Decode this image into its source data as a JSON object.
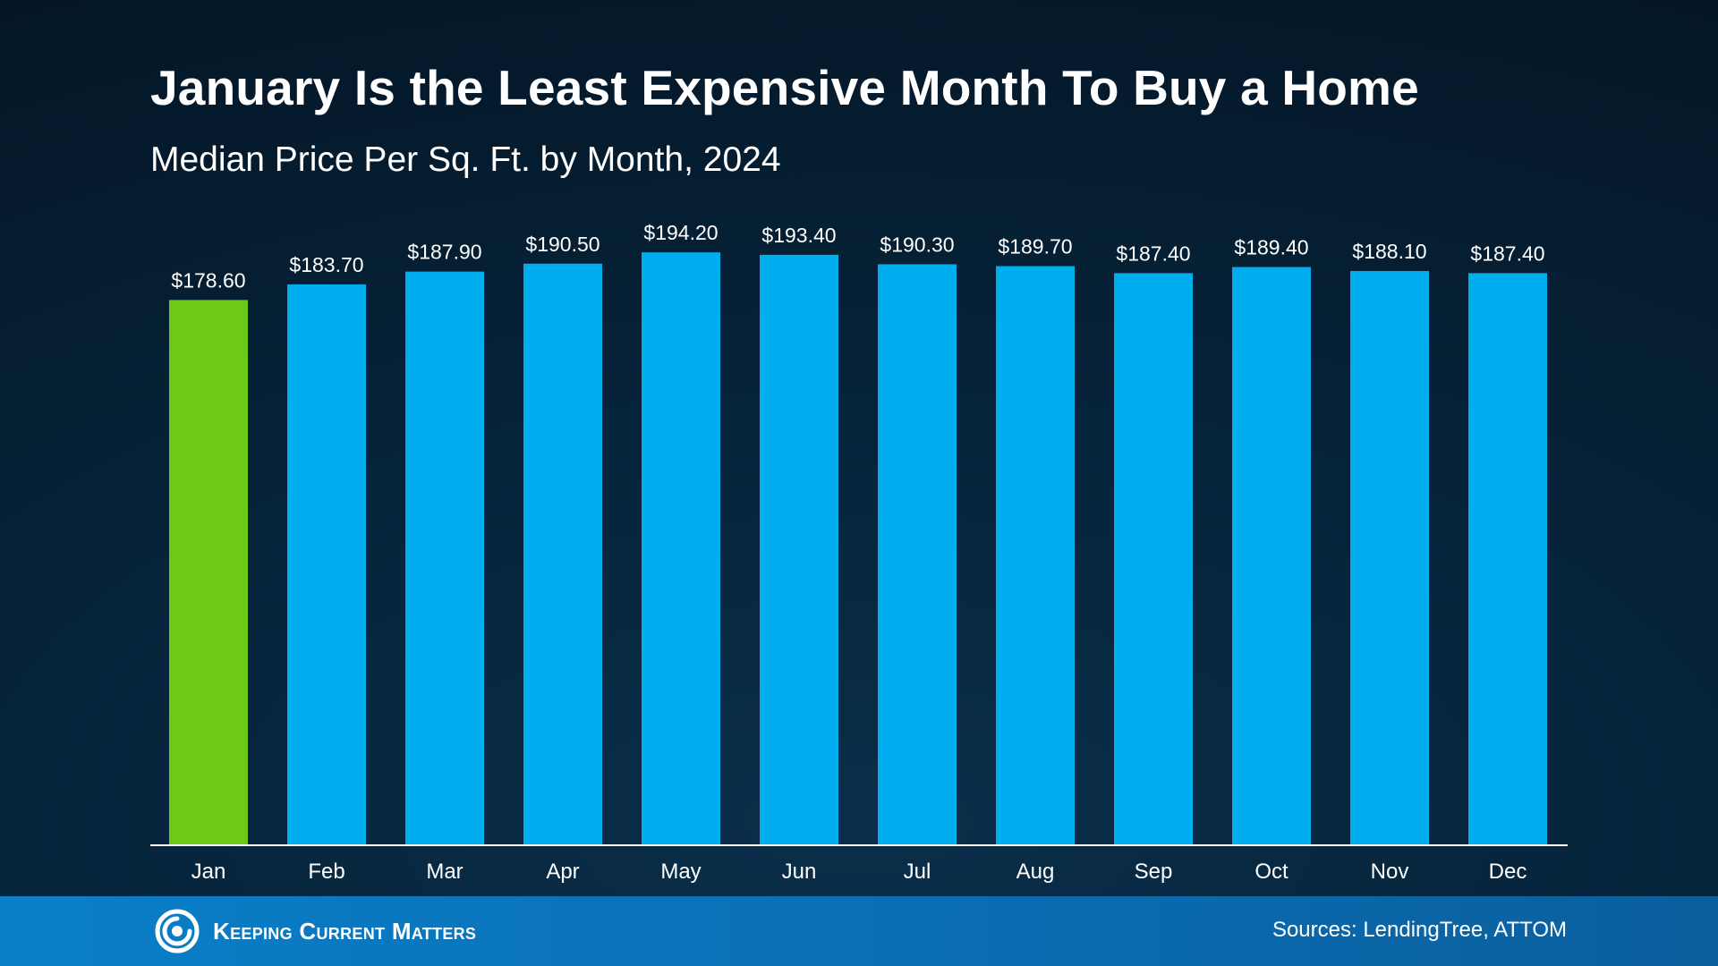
{
  "title": "January Is the Least Expensive Month To Buy a Home",
  "subtitle": "Median Price Per Sq. Ft. by Month, 2024",
  "chart_data": {
    "type": "bar",
    "categories": [
      "Jan",
      "Feb",
      "Mar",
      "Apr",
      "May",
      "Jun",
      "Jul",
      "Aug",
      "Sep",
      "Oct",
      "Nov",
      "Dec"
    ],
    "values": [
      178.6,
      183.7,
      187.9,
      190.5,
      194.2,
      193.4,
      190.3,
      189.7,
      187.4,
      189.4,
      188.1,
      187.4
    ],
    "value_labels": [
      "$178.60",
      "$183.70",
      "$187.90",
      "$190.50",
      "$194.20",
      "$193.40",
      "$190.30",
      "$189.70",
      "$187.40",
      "$189.40",
      "$188.10",
      "$187.40"
    ],
    "ylim": [
      0,
      196
    ],
    "grid": false,
    "colors": {
      "highlight": "#6cc918",
      "default": "#00adef",
      "axis": "#ffffff"
    },
    "highlight_index": 0
  },
  "footer": {
    "brand": "Keeping Current Matters",
    "logo_icon": "kcm-spiral-icon",
    "sources": "Sources: LendingTree, ATTOM",
    "color": "#0a72b8"
  }
}
